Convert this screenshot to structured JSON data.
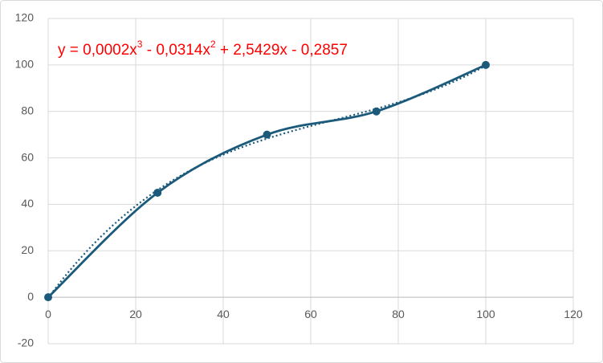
{
  "chart_data": {
    "type": "scatter",
    "line": "smooth",
    "marker": "circle",
    "x": [
      0,
      25,
      50,
      75,
      100
    ],
    "series": [
      {
        "values": [
          0,
          45,
          70,
          80,
          100
        ],
        "color": "#1b5a7a"
      }
    ],
    "xlim": [
      0,
      120
    ],
    "xticks": [
      0,
      20,
      40,
      60,
      80,
      100,
      120
    ],
    "ylim": [
      -20,
      120
    ],
    "yticks": [
      -20,
      0,
      20,
      40,
      60,
      80,
      100,
      120
    ],
    "grid": true,
    "trendline": {
      "order": 3,
      "style": "dotted",
      "color": "#1b5a7a"
    },
    "annotation": {
      "color": "#ff0000",
      "parts": [
        {
          "text": "y = 0,0002x"
        },
        {
          "text": "3",
          "sup": true
        },
        {
          "text": " - 0,0314x"
        },
        {
          "text": "2",
          "sup": true
        },
        {
          "text": " + 2,5429x - 0,2857"
        }
      ]
    }
  }
}
